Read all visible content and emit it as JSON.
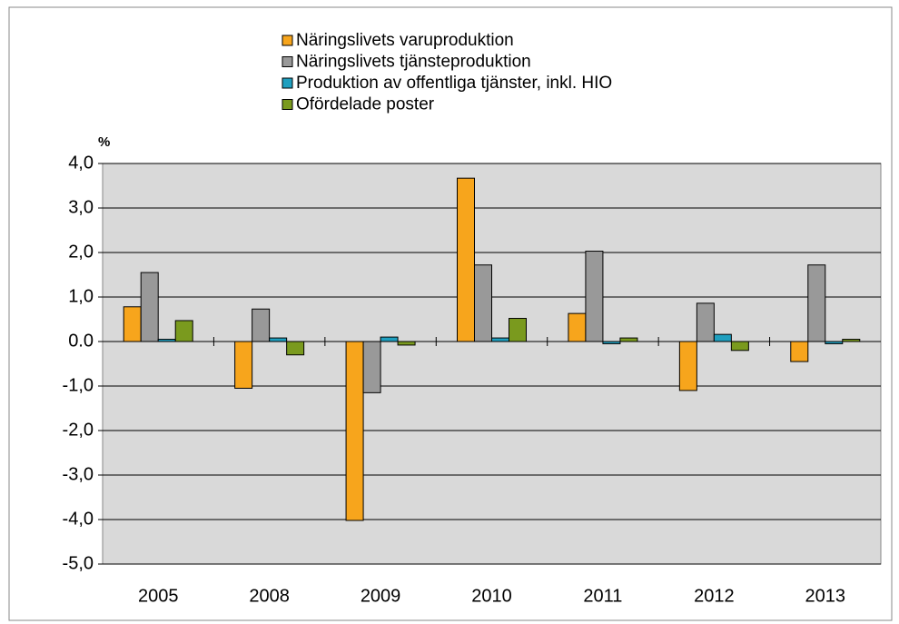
{
  "chart_data": {
    "type": "bar",
    "y_label": "%",
    "categories": [
      "2005",
      "2008",
      "2009",
      "2010",
      "2011",
      "2012",
      "2013"
    ],
    "series": [
      {
        "name": "Näringslivets varuproduktion",
        "color": "#f7a51c",
        "values": [
          0.78,
          -1.05,
          -4.02,
          3.67,
          0.63,
          -1.1,
          -0.45
        ]
      },
      {
        "name": "Näringslivets tjänsteproduktion",
        "color": "#999999",
        "values": [
          1.55,
          0.73,
          -1.15,
          1.72,
          2.03,
          0.86,
          1.72
        ]
      },
      {
        "name": "Produktion av offentliga tjänster, inkl. HIO",
        "color": "#1f9fbf",
        "values": [
          0.05,
          0.08,
          0.1,
          0.08,
          -0.05,
          0.16,
          -0.05
        ]
      },
      {
        "name": "Ofördelade poster",
        "color": "#7a9a1e",
        "values": [
          0.47,
          -0.3,
          -0.08,
          0.52,
          0.08,
          -0.2,
          0.05
        ]
      }
    ],
    "ylim": [
      -5,
      4
    ],
    "yticks": [
      {
        "value": -5,
        "label": "-5,0"
      },
      {
        "value": -4,
        "label": "-4,0"
      },
      {
        "value": -3,
        "label": "-3,0"
      },
      {
        "value": -2,
        "label": "-2,0"
      },
      {
        "value": -1,
        "label": "-1,0"
      },
      {
        "value": 0,
        "label": "0.0"
      },
      {
        "value": 1,
        "label": "1,0"
      },
      {
        "value": 2,
        "label": "2,0"
      },
      {
        "value": 3,
        "label": "3,0"
      },
      {
        "value": 4,
        "label": "4,0"
      }
    ],
    "grid": true
  }
}
